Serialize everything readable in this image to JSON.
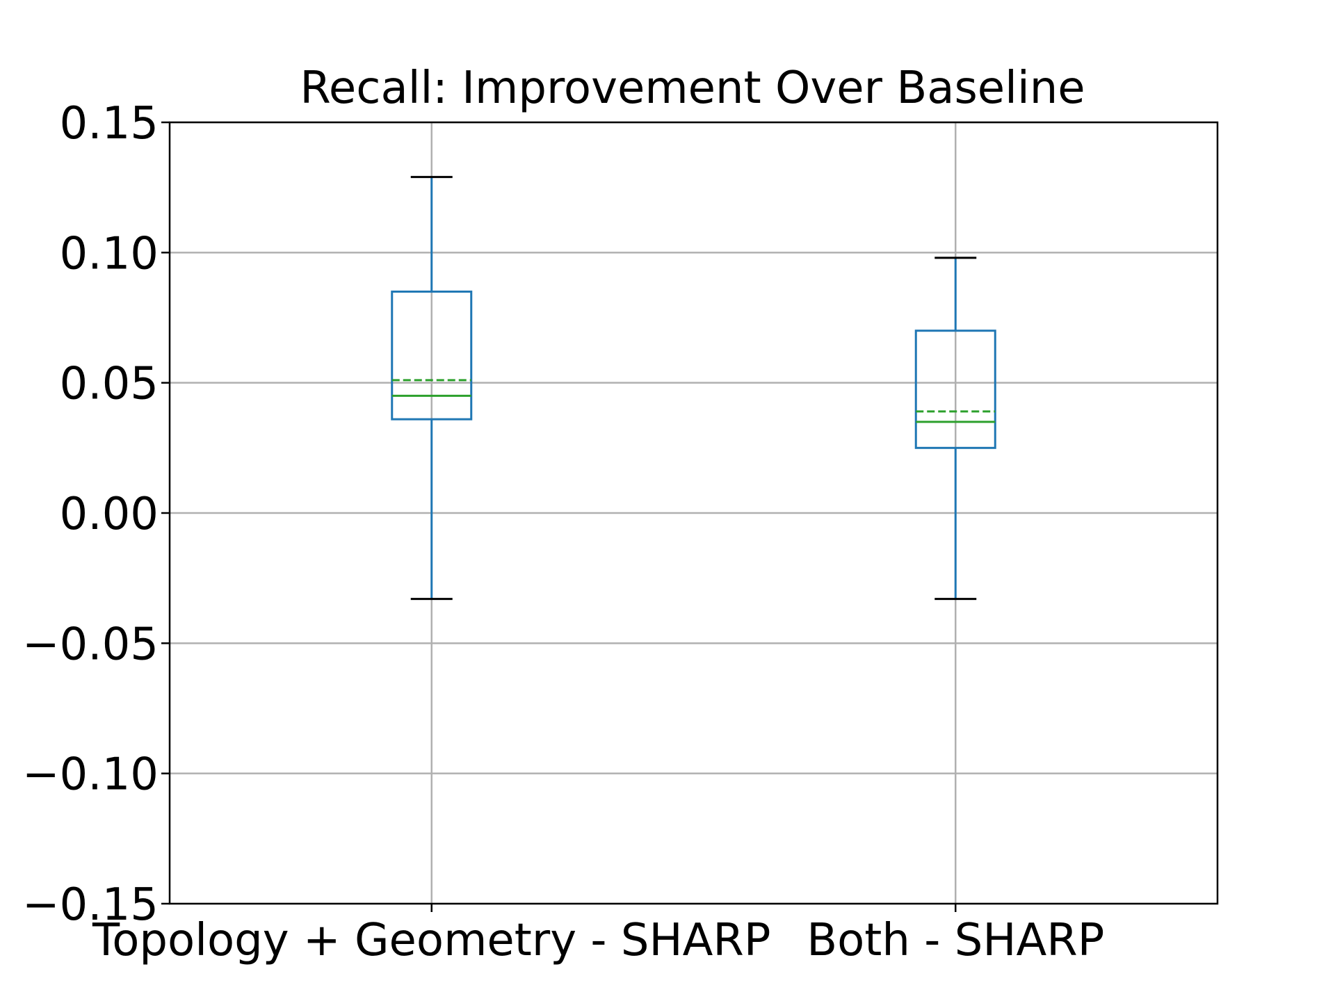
{
  "chart_data": {
    "type": "boxplot",
    "title": "Recall: Improvement Over Baseline",
    "xlabel": "",
    "ylabel": "",
    "ylim": [
      -0.15,
      0.15
    ],
    "yticks": [
      0.15,
      0.1,
      0.05,
      0.0,
      -0.05,
      -0.1,
      -0.15
    ],
    "ytick_labels": [
      "0.15",
      "0.10",
      "0.05",
      "0.00",
      "−0.05",
      "−0.10",
      "−0.15"
    ],
    "grid": true,
    "categories": [
      "Topology + Geometry - SHARP",
      "Both - SHARP"
    ],
    "boxes": [
      {
        "whisker_low": -0.033,
        "q1": 0.036,
        "median": 0.045,
        "mean": 0.051,
        "q3": 0.085,
        "whisker_high": 0.129
      },
      {
        "whisker_low": -0.033,
        "q1": 0.025,
        "median": 0.035,
        "mean": 0.039,
        "q3": 0.07,
        "whisker_high": 0.098
      }
    ],
    "colors": {
      "box": "#1f77b4",
      "median": "#2ca02c",
      "mean": "#2ca02c",
      "caps": "#000000",
      "grid": "#b0b0b0",
      "axes": "#000000"
    }
  }
}
